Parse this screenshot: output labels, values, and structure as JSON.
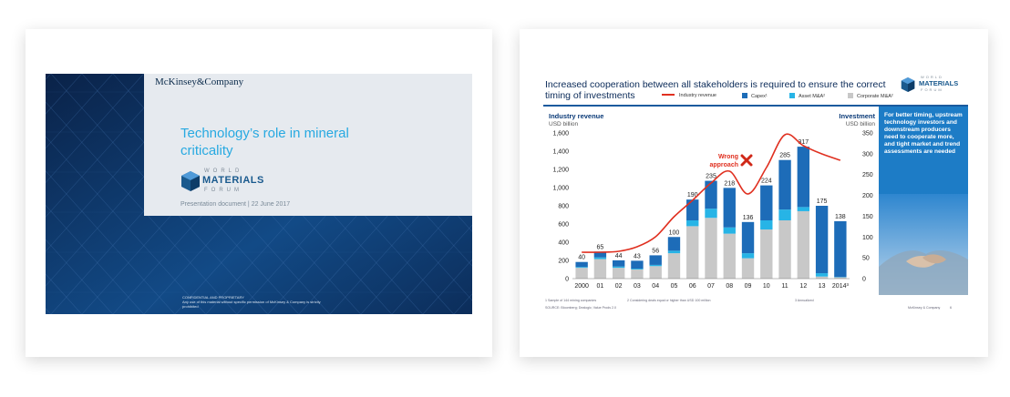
{
  "slide1": {
    "company": "McKinsey&Company",
    "title": "Technology’s role in mineral criticality",
    "logo": {
      "line1": "WORLD",
      "line2": "MATERIALS",
      "line3": "FORUM"
    },
    "subtitle": "Presentation document | 22 June 2017",
    "confidential": "CONFIDENTIAL AND PROPRIETARY",
    "disclaimer": "Any use of this material without specific permission of McKinsey & Company is strictly prohibited"
  },
  "slide2": {
    "title": "Increased cooperation between all stakeholders is required to ensure the correct timing of investments",
    "logo": {
      "line1": "WORLD",
      "line2": "MATERIALS",
      "line3": "FORUM"
    },
    "legend": {
      "revenue": "Industry revenue",
      "capex": "Capex¹",
      "asset": "Asset M&A²",
      "corporate": "Corporate M&A²"
    },
    "colors": {
      "capex": "#1d6cb8",
      "asset": "#27b4e6",
      "corporate": "#c8c8c8",
      "revenue": "#e03020"
    },
    "panel_text": "For better timing, upstream technology investors and downstream producers need to cooperate more, and tight market and trend assessments are needed",
    "annotation": "Wrong approach",
    "footnotes": {
      "f1": "1 Sample of 144 mining companies",
      "f2": "2 Considering deals equal or higher than USD 100 million",
      "f3": "3 Annualized",
      "source": "SOURCE: Bloomberg; Dealogic; Value Prods 2.0",
      "brand": "McKinsey & Company",
      "page": "6"
    }
  },
  "chart_data": {
    "type": "bar",
    "left_axis": {
      "title": "Industry revenue",
      "unit": "USD billion",
      "ticks": [
        "0",
        "200",
        "400",
        "600",
        "800",
        "1,000",
        "1,200",
        "1,400",
        "1,600"
      ],
      "ylim": [
        0,
        1600
      ]
    },
    "right_axis": {
      "title": "Investment",
      "unit": "USD billion",
      "ticks": [
        "0",
        "50",
        "100",
        "150",
        "200",
        "250",
        "300",
        "350"
      ],
      "ylim": [
        0,
        350
      ]
    },
    "categories": [
      "2000",
      "01",
      "02",
      "03",
      "04",
      "05",
      "06",
      "07",
      "08",
      "09",
      "10",
      "11",
      "12",
      "13",
      "2014³"
    ],
    "totals": [
      40,
      65,
      44,
      43,
      56,
      100,
      190,
      235,
      218,
      136,
      224,
      285,
      317,
      175,
      138
    ],
    "total_labels": [
      "40",
      "65",
      "44",
      "43",
      "56",
      "100",
      "190",
      "235",
      "218",
      "136",
      "224",
      "285",
      "317",
      "175",
      "138"
    ],
    "series": [
      {
        "name": "Corporate M&A²",
        "values": [
          26,
          47,
          26,
          22,
          30,
          61,
          126,
          146,
          108,
          49,
          118,
          140,
          162,
          5,
          3
        ]
      },
      {
        "name": "Asset M&A²",
        "values": [
          2,
          4,
          3,
          2,
          3,
          6,
          14,
          22,
          15,
          12,
          22,
          26,
          10,
          8,
          1
        ]
      },
      {
        "name": "Capex¹",
        "values": [
          12,
          14,
          15,
          19,
          23,
          33,
          50,
          67,
          95,
          75,
          84,
          119,
          145,
          162,
          134
        ]
      }
    ],
    "revenue": [
      290,
      290,
      300,
      350,
      460,
      680,
      860,
      1050,
      1180,
      930,
      1220,
      1580,
      1460,
      1370,
      1300
    ]
  }
}
